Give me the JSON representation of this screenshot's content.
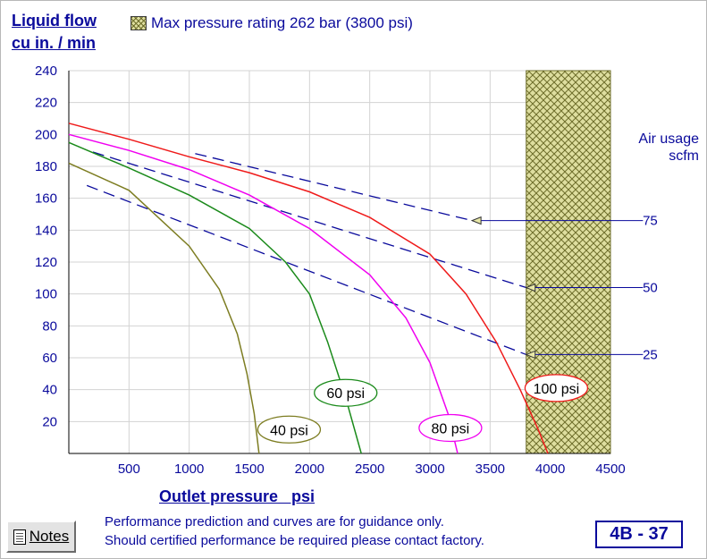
{
  "chart_data": {
    "type": "line",
    "ylabel_line1": "Liquid flow",
    "ylabel_line2": "cu in. / min",
    "xlabel": "Outlet pressure   psi",
    "xlim": [
      0,
      4500
    ],
    "ylim": [
      0,
      240
    ],
    "x_ticks": [
      500,
      1000,
      1500,
      2000,
      2500,
      3000,
      3500,
      4000,
      4500
    ],
    "y_ticks": [
      20,
      40,
      60,
      80,
      100,
      120,
      140,
      160,
      180,
      200,
      220,
      240
    ],
    "grid": true,
    "shaded_region": {
      "label": "Max pressure rating 262 bar (3800 psi)",
      "x_from": 3800,
      "x_to": 4500,
      "color": "#6d6d2a"
    },
    "series": [
      {
        "name": "40 psi",
        "color": "#7d7d22",
        "label_at": [
          1830,
          15
        ],
        "points": [
          [
            0,
            182
          ],
          [
            500,
            165
          ],
          [
            1000,
            130
          ],
          [
            1250,
            103
          ],
          [
            1400,
            75
          ],
          [
            1480,
            50
          ],
          [
            1540,
            25
          ],
          [
            1580,
            0
          ]
        ]
      },
      {
        "name": "60 psi",
        "color": "#1a8a1a",
        "label_at": [
          2300,
          38
        ],
        "points": [
          [
            0,
            195
          ],
          [
            500,
            179
          ],
          [
            1000,
            162
          ],
          [
            1500,
            141
          ],
          [
            1800,
            120
          ],
          [
            2000,
            100
          ],
          [
            2150,
            70
          ],
          [
            2300,
            35
          ],
          [
            2430,
            0
          ]
        ]
      },
      {
        "name": "80 psi",
        "color": "#f000f0",
        "label_at": [
          3170,
          16
        ],
        "points": [
          [
            0,
            200
          ],
          [
            500,
            190
          ],
          [
            1000,
            178
          ],
          [
            1500,
            162
          ],
          [
            2000,
            141
          ],
          [
            2500,
            112
          ],
          [
            2800,
            85
          ],
          [
            3000,
            57
          ],
          [
            3150,
            25
          ],
          [
            3230,
            0
          ]
        ]
      },
      {
        "name": "100 psi",
        "color": "#ef1a1a",
        "label_at": [
          4050,
          41
        ],
        "points": [
          [
            0,
            207
          ],
          [
            500,
            197
          ],
          [
            1000,
            186
          ],
          [
            1500,
            176
          ],
          [
            2000,
            164
          ],
          [
            2500,
            148
          ],
          [
            3000,
            125
          ],
          [
            3300,
            100
          ],
          [
            3550,
            70
          ],
          [
            3750,
            40
          ],
          [
            3900,
            15
          ],
          [
            3980,
            0
          ]
        ]
      }
    ],
    "air_usage": {
      "title": "Air usage scfm",
      "color": "#0a0a9c",
      "lines": [
        {
          "label": "75",
          "points": [
            [
              1050,
              188
            ],
            [
              3350,
              146
            ]
          ],
          "arrow_tip": [
            3350,
            146
          ],
          "leader_end_x": 4770,
          "label_at": [
            4830,
            146
          ]
        },
        {
          "label": "50",
          "points": [
            [
              200,
              189
            ],
            [
              3800,
              104
            ]
          ],
          "arrow_tip": [
            3800,
            104
          ],
          "leader_end_x": 4770,
          "label_at": [
            4830,
            104
          ]
        },
        {
          "label": "25",
          "points": [
            [
              150,
              168
            ],
            [
              3800,
              62
            ]
          ],
          "arrow_tip": [
            3800,
            62
          ],
          "leader_end_x": 4770,
          "label_at": [
            4830,
            62
          ]
        }
      ]
    }
  },
  "air_usage_title_line1": "Air usage",
  "air_usage_title_line2": "scfm",
  "notes_button": {
    "label": "Notes",
    "icon": "notes-icon"
  },
  "disclaimer": {
    "line1": "Performance prediction and curves are for guidance only.",
    "line2": "Should certified performance be required please contact factory."
  },
  "chart_ref": "4B - 37"
}
